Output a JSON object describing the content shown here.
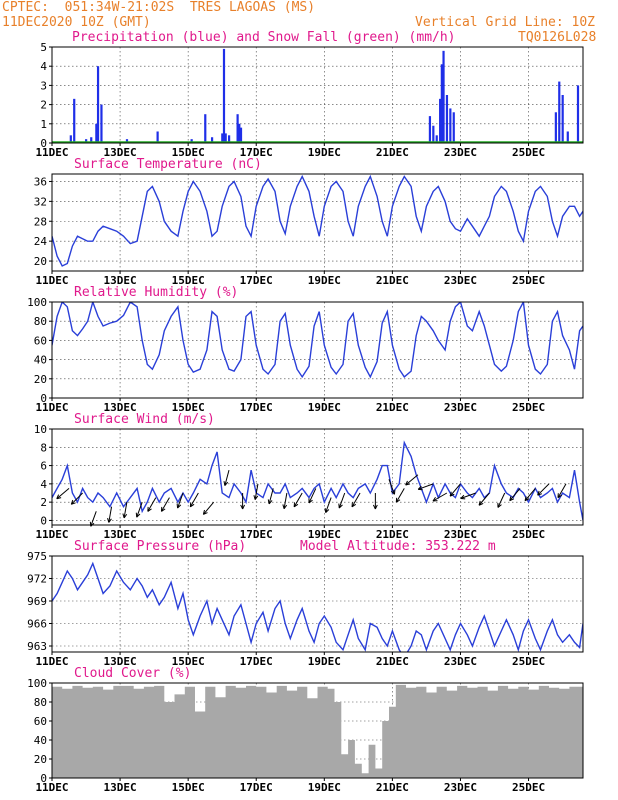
{
  "header": {
    "station": "CPTEC:  051:34W-21:02S  TRES LAGOAS (MS)",
    "init_time": "11DEC2020 10Z (GMT)",
    "grid_note": "Vertical Grid Line: 10Z",
    "code": "TQ0126L028"
  },
  "colors": {
    "header_text": "#e8802a",
    "title_text": "#e0198c",
    "series_line": "#2a3fd8",
    "precip_bar": "#1f2fe8",
    "snow_line": "#22aa22",
    "cloud_fill": "#a8a8a8",
    "wind_arrow": "#000000"
  },
  "x_axis": {
    "tick_labels": [
      "11DEC",
      "13DEC",
      "15DEC",
      "17DEC",
      "19DEC",
      "21DEC",
      "23DEC",
      "25DEC"
    ],
    "tick_days": [
      11,
      13,
      15,
      17,
      19,
      21,
      23,
      25
    ],
    "start_day": 11,
    "end_day": 26.6
  },
  "chart_data": [
    {
      "id": "precip",
      "type": "bar",
      "title": "Precipitation (blue) and Snow Fall (green) (mm/h)",
      "ylim": [
        0,
        5
      ],
      "yticks": [
        0,
        1,
        2,
        3,
        4,
        5
      ],
      "ytick_labels": [
        "0",
        "1",
        "2",
        "3",
        "4",
        "5"
      ],
      "x": [
        11.55,
        11.65,
        12.0,
        12.15,
        12.3,
        12.35,
        12.45,
        13.2,
        14.1,
        15.1,
        15.5,
        15.7,
        16.0,
        16.05,
        16.1,
        16.2,
        16.45,
        16.5,
        16.55,
        22.1,
        22.2,
        22.3,
        22.4,
        22.45,
        22.5,
        22.6,
        22.7,
        22.8,
        25.8,
        25.9,
        26.0,
        26.15,
        26.45
      ],
      "values": [
        0.4,
        2.3,
        0.2,
        0.3,
        1.0,
        4.0,
        2.0,
        0.2,
        0.6,
        0.2,
        1.5,
        0.3,
        0.5,
        4.9,
        0.5,
        0.4,
        1.5,
        1.0,
        0.8,
        1.4,
        0.9,
        0.4,
        2.3,
        4.1,
        4.8,
        2.5,
        1.8,
        1.6,
        1.6,
        3.2,
        2.5,
        0.6,
        3.0
      ],
      "snow": 0
    },
    {
      "id": "temperature",
      "type": "line",
      "title": "Surface Temperature (nC)",
      "ylim": [
        18,
        37.5
      ],
      "yticks": [
        20,
        24,
        28,
        32,
        36
      ],
      "ytick_labels": [
        "20",
        "24",
        "28",
        "32",
        "36"
      ],
      "x": [
        11.0,
        11.15,
        11.3,
        11.45,
        11.6,
        11.75,
        11.9,
        12.05,
        12.2,
        12.35,
        12.5,
        12.7,
        12.9,
        13.1,
        13.3,
        13.5,
        13.65,
        13.8,
        13.95,
        14.15,
        14.3,
        14.5,
        14.7,
        14.85,
        15.0,
        15.15,
        15.35,
        15.55,
        15.7,
        15.85,
        16.0,
        16.2,
        16.35,
        16.55,
        16.7,
        16.85,
        17.0,
        17.2,
        17.35,
        17.55,
        17.7,
        17.85,
        18.0,
        18.2,
        18.35,
        18.55,
        18.7,
        18.85,
        19.0,
        19.2,
        19.35,
        19.55,
        19.7,
        19.85,
        20.0,
        20.2,
        20.35,
        20.55,
        20.7,
        20.85,
        21.0,
        21.2,
        21.35,
        21.55,
        21.7,
        21.85,
        22.0,
        22.2,
        22.35,
        22.55,
        22.7,
        22.85,
        23.0,
        23.2,
        23.35,
        23.55,
        23.7,
        23.85,
        24.0,
        24.2,
        24.35,
        24.55,
        24.7,
        24.85,
        25.0,
        25.2,
        25.35,
        25.55,
        25.7,
        25.85,
        26.0,
        26.2,
        26.35,
        26.5,
        26.6
      ],
      "values": [
        25,
        21,
        19,
        19.5,
        23,
        25,
        24.5,
        24,
        24,
        26,
        27,
        26.5,
        26,
        25,
        23.5,
        24,
        29,
        34,
        35,
        32,
        28,
        26,
        25,
        30,
        34,
        36,
        34,
        30,
        25,
        26,
        31,
        35,
        36,
        33,
        27,
        25,
        31,
        35,
        36.5,
        34,
        28,
        25.5,
        31,
        35,
        37,
        34,
        29,
        25,
        31,
        35,
        36,
        34,
        28,
        25,
        31,
        35,
        37,
        33,
        28,
        25,
        31,
        35,
        37,
        35,
        29,
        26,
        31,
        34,
        35,
        32,
        28,
        26.5,
        26,
        28.5,
        27,
        25,
        27,
        29,
        33,
        35,
        34,
        30,
        26,
        24,
        30,
        34,
        35,
        33,
        28,
        25,
        29,
        31,
        31,
        29,
        30
      ]
    },
    {
      "id": "humidity",
      "type": "line",
      "title": "Relative Humidity (%)",
      "ylim": [
        0,
        100
      ],
      "yticks": [
        0,
        20,
        40,
        60,
        80,
        100
      ],
      "ytick_labels": [
        "0",
        "20",
        "40",
        "60",
        "80",
        "100"
      ],
      "x": [
        11.0,
        11.15,
        11.3,
        11.45,
        11.6,
        11.75,
        11.9,
        12.05,
        12.2,
        12.35,
        12.5,
        12.7,
        12.9,
        13.1,
        13.3,
        13.5,
        13.65,
        13.8,
        13.95,
        14.15,
        14.3,
        14.5,
        14.7,
        14.85,
        15.0,
        15.15,
        15.35,
        15.55,
        15.7,
        15.85,
        16.0,
        16.2,
        16.35,
        16.55,
        16.7,
        16.85,
        17.0,
        17.2,
        17.35,
        17.55,
        17.7,
        17.85,
        18.0,
        18.2,
        18.35,
        18.55,
        18.7,
        18.85,
        19.0,
        19.2,
        19.35,
        19.55,
        19.7,
        19.85,
        20.0,
        20.2,
        20.35,
        20.55,
        20.7,
        20.85,
        21.0,
        21.2,
        21.35,
        21.55,
        21.7,
        21.85,
        22.0,
        22.2,
        22.35,
        22.55,
        22.7,
        22.85,
        23.0,
        23.2,
        23.35,
        23.55,
        23.7,
        23.85,
        24.0,
        24.2,
        24.35,
        24.55,
        24.7,
        24.85,
        25.0,
        25.2,
        25.35,
        25.55,
        25.7,
        25.85,
        26.0,
        26.2,
        26.35,
        26.5,
        26.6
      ],
      "values": [
        55,
        85,
        100,
        95,
        70,
        65,
        72,
        80,
        100,
        85,
        75,
        78,
        80,
        86,
        100,
        95,
        60,
        35,
        30,
        45,
        70,
        85,
        95,
        60,
        35,
        27,
        30,
        50,
        90,
        85,
        50,
        30,
        28,
        40,
        85,
        90,
        55,
        30,
        25,
        35,
        80,
        88,
        55,
        30,
        22,
        33,
        75,
        90,
        55,
        32,
        25,
        35,
        80,
        88,
        55,
        32,
        22,
        38,
        78,
        90,
        55,
        30,
        22,
        28,
        65,
        85,
        80,
        70,
        60,
        50,
        80,
        95,
        100,
        75,
        70,
        90,
        75,
        55,
        35,
        28,
        33,
        60,
        90,
        100,
        55,
        30,
        25,
        35,
        80,
        90,
        65,
        50,
        30,
        70,
        75
      ]
    },
    {
      "id": "wind",
      "type": "line",
      "title": "Surface Wind (m/s)",
      "ylim": [
        -0.5,
        10
      ],
      "yticks": [
        0,
        2,
        4,
        6,
        8,
        10
      ],
      "ytick_labels": [
        "0",
        "2",
        "4",
        "6",
        "8",
        "10"
      ],
      "x": [
        11.0,
        11.15,
        11.3,
        11.45,
        11.6,
        11.75,
        11.9,
        12.05,
        12.2,
        12.35,
        12.5,
        12.7,
        12.9,
        13.1,
        13.3,
        13.5,
        13.65,
        13.8,
        13.95,
        14.15,
        14.3,
        14.5,
        14.7,
        14.85,
        15.0,
        15.15,
        15.35,
        15.55,
        15.7,
        15.85,
        16.0,
        16.2,
        16.35,
        16.55,
        16.7,
        16.85,
        17.0,
        17.2,
        17.35,
        17.55,
        17.7,
        17.85,
        18.0,
        18.2,
        18.35,
        18.55,
        18.7,
        18.85,
        19.0,
        19.2,
        19.35,
        19.55,
        19.7,
        19.85,
        20.0,
        20.2,
        20.35,
        20.55,
        20.7,
        20.85,
        21.0,
        21.2,
        21.35,
        21.55,
        21.7,
        21.85,
        22.0,
        22.2,
        22.35,
        22.55,
        22.7,
        22.85,
        23.0,
        23.2,
        23.35,
        23.55,
        23.7,
        23.85,
        24.0,
        24.2,
        24.35,
        24.55,
        24.7,
        24.85,
        25.0,
        25.2,
        25.35,
        25.55,
        25.7,
        25.85,
        26.0,
        26.2,
        26.35,
        26.5,
        26.6
      ],
      "values": [
        2.5,
        3.5,
        4.5,
        6.0,
        3.0,
        2.0,
        3.5,
        2.5,
        2.0,
        3.0,
        2.5,
        1.5,
        3.0,
        1.5,
        2.5,
        3.5,
        1.0,
        2.0,
        3.5,
        2.0,
        3.0,
        3.5,
        2.0,
        3.0,
        2.0,
        3.0,
        4.5,
        4.0,
        6.0,
        7.5,
        3.0,
        2.5,
        4.0,
        3.0,
        2.0,
        5.5,
        3.0,
        2.5,
        4.0,
        3.0,
        3.0,
        4.0,
        2.5,
        3.0,
        3.5,
        2.5,
        3.5,
        4.0,
        2.0,
        3.5,
        2.5,
        4.0,
        3.0,
        2.5,
        3.5,
        4.0,
        3.0,
        4.5,
        6.0,
        6.0,
        3.0,
        4.0,
        8.5,
        7.0,
        5.0,
        3.5,
        2.0,
        4.0,
        2.5,
        4.0,
        3.0,
        2.5,
        4.0,
        3.0,
        2.5,
        3.5,
        2.5,
        3.0,
        6.0,
        4.0,
        3.0,
        2.5,
        3.5,
        3.0,
        2.0,
        3.5,
        2.5,
        3.0,
        3.5,
        2.0,
        3.0,
        2.5,
        5.5,
        2.0,
        0.0
      ],
      "arrows": {
        "x": [
          11.5,
          11.9,
          12.3,
          12.75,
          13.2,
          13.65,
          14.05,
          14.45,
          14.85,
          15.3,
          15.75,
          16.2,
          16.6,
          17.05,
          17.5,
          17.9,
          18.35,
          18.75,
          19.2,
          19.6,
          20.05,
          20.5,
          20.9,
          21.35,
          21.75,
          22.2,
          22.6,
          23.0,
          23.45,
          23.85,
          24.3,
          24.75,
          25.2,
          25.6,
          26.1
        ],
        "dir_deg": [
          230,
          225,
          200,
          190,
          190,
          200,
          210,
          210,
          200,
          210,
          220,
          195,
          180,
          190,
          195,
          190,
          210,
          205,
          200,
          200,
          210,
          180,
          160,
          210,
          230,
          250,
          240,
          220,
          250,
          220,
          205,
          220,
          220,
          225,
          210
        ],
        "speed": [
          3.5,
          3.0,
          1.0,
          1.5,
          2.0,
          2.0,
          2.5,
          2.5,
          3.0,
          3.0,
          2.0,
          5.5,
          3.0,
          4.0,
          3.5,
          3.0,
          3.0,
          3.5,
          2.5,
          3.0,
          3.0,
          3.0,
          4.5,
          3.5,
          5.0,
          4.0,
          3.0,
          4.0,
          3.0,
          3.0,
          3.0,
          3.5,
          3.5,
          4.0,
          4.0
        ]
      }
    },
    {
      "id": "pressure",
      "type": "line",
      "title": "Surface Pressure (hPa)",
      "annotation": "Model Altitude: 353.222  m",
      "ylim": [
        962.2,
        975
      ],
      "yticks": [
        963,
        966,
        969,
        972,
        975
      ],
      "ytick_labels": [
        "963",
        "966",
        "969",
        "972",
        "975"
      ],
      "x": [
        11.0,
        11.15,
        11.3,
        11.45,
        11.6,
        11.75,
        11.9,
        12.05,
        12.2,
        12.35,
        12.5,
        12.7,
        12.9,
        13.1,
        13.3,
        13.5,
        13.65,
        13.8,
        13.95,
        14.15,
        14.3,
        14.5,
        14.7,
        14.85,
        15.0,
        15.15,
        15.35,
        15.55,
        15.7,
        15.85,
        16.0,
        16.2,
        16.35,
        16.55,
        16.7,
        16.85,
        17.0,
        17.2,
        17.35,
        17.55,
        17.7,
        17.85,
        18.0,
        18.2,
        18.35,
        18.55,
        18.7,
        18.85,
        19.0,
        19.2,
        19.35,
        19.55,
        19.7,
        19.85,
        20.0,
        20.2,
        20.35,
        20.55,
        20.7,
        20.85,
        21.0,
        21.2,
        21.35,
        21.55,
        21.7,
        21.85,
        22.0,
        22.2,
        22.35,
        22.55,
        22.7,
        22.85,
        23.0,
        23.2,
        23.35,
        23.55,
        23.7,
        23.85,
        24.0,
        24.2,
        24.35,
        24.55,
        24.7,
        24.85,
        25.0,
        25.2,
        25.35,
        25.55,
        25.7,
        25.85,
        26.0,
        26.2,
        26.35,
        26.5,
        26.6
      ],
      "values": [
        969,
        970,
        971.5,
        973,
        972,
        970.5,
        971.5,
        972.5,
        974,
        972,
        970,
        971,
        973,
        971.5,
        970.5,
        972,
        971,
        969.5,
        970.5,
        968.5,
        969.5,
        971.5,
        968,
        970,
        966.5,
        964.5,
        967,
        969,
        966,
        968,
        966.5,
        964.5,
        967,
        968.5,
        966,
        963.5,
        966,
        967.5,
        965,
        968,
        969,
        966,
        964,
        966.5,
        968,
        965,
        963.5,
        966,
        967,
        965.5,
        963.5,
        962.5,
        964.5,
        966.5,
        964,
        962.5,
        966,
        965.5,
        964,
        963,
        965,
        962.5,
        961.5,
        963,
        965,
        964.5,
        962.5,
        965,
        966,
        964,
        962.5,
        964.5,
        966,
        964.5,
        963,
        965.5,
        967,
        965,
        963,
        965,
        966.5,
        964.5,
        962.5,
        965,
        966.5,
        964,
        962.5,
        965,
        966.5,
        964.5,
        963.5,
        964.5,
        963.5,
        962.8,
        966
      ]
    },
    {
      "id": "cloud",
      "type": "area",
      "title": "Cloud Cover (%)",
      "ylim": [
        0,
        100
      ],
      "yticks": [
        0,
        20,
        40,
        60,
        80,
        100
      ],
      "ytick_labels": [
        "0",
        "20",
        "40",
        "60",
        "80",
        "100"
      ],
      "x": [
        11.0,
        11.3,
        11.6,
        11.9,
        12.2,
        12.5,
        12.8,
        13.1,
        13.4,
        13.7,
        14.0,
        14.3,
        14.6,
        14.9,
        15.2,
        15.5,
        15.8,
        16.1,
        16.4,
        16.7,
        17.0,
        17.3,
        17.6,
        17.9,
        18.2,
        18.5,
        18.8,
        19.1,
        19.3,
        19.5,
        19.7,
        19.9,
        20.1,
        20.3,
        20.5,
        20.7,
        20.9,
        21.1,
        21.4,
        21.7,
        22.0,
        22.3,
        22.6,
        22.9,
        23.2,
        23.5,
        23.8,
        24.1,
        24.4,
        24.7,
        25.0,
        25.3,
        25.6,
        25.9,
        26.2,
        26.6
      ],
      "values": [
        96,
        94,
        97,
        95,
        96,
        93,
        97,
        97,
        94,
        96,
        97,
        80,
        88,
        96,
        70,
        96,
        85,
        97,
        95,
        97,
        96,
        90,
        97,
        92,
        96,
        84,
        96,
        94,
        80,
        25,
        40,
        15,
        5,
        35,
        10,
        60,
        75,
        98,
        95,
        96,
        90,
        96,
        92,
        97,
        95,
        96,
        92,
        97,
        94,
        96,
        93,
        97,
        95,
        94,
        96,
        95
      ]
    }
  ]
}
